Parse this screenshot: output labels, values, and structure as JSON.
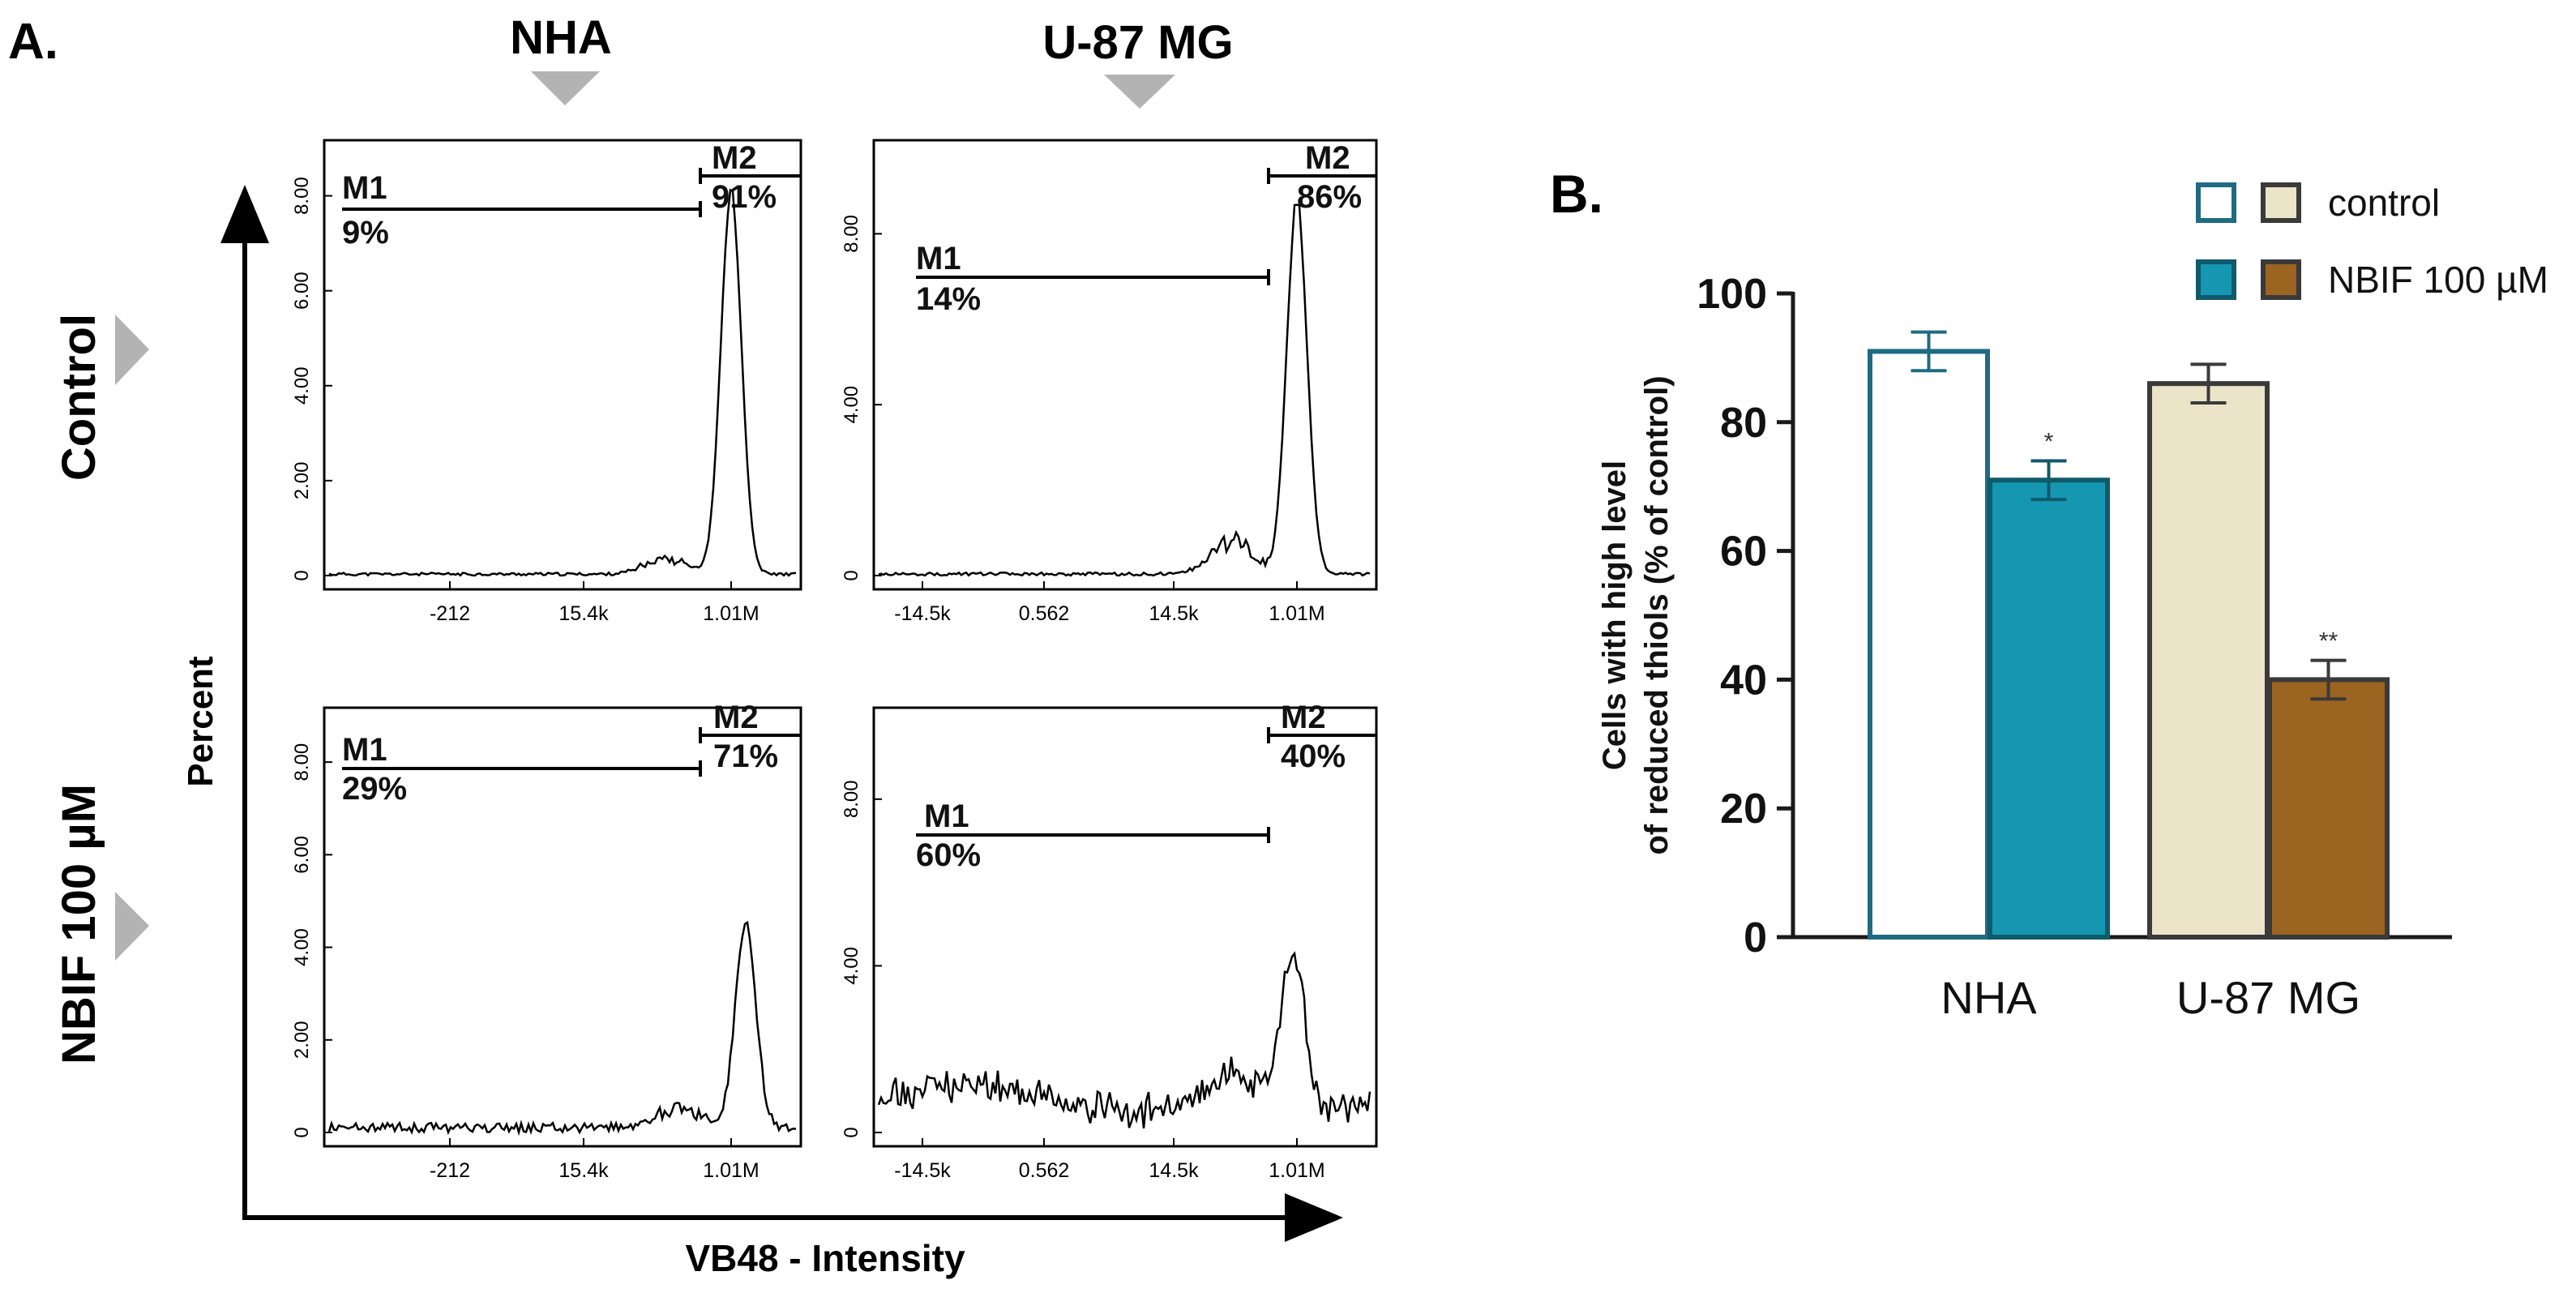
{
  "panel_a": {
    "label": "A.",
    "col_labels": [
      "NHA",
      "U-87 MG"
    ],
    "row_labels": [
      "Control",
      "NBIF 100 µM"
    ],
    "y_axis_label": "Percent",
    "x_axis_label": "VB48 - Intensity"
  },
  "panel_b": {
    "label": "B."
  },
  "chart_data": [
    {
      "type": "line",
      "title": "NHA - Control",
      "ytick_labels": [
        "0",
        "2.00",
        "4.00",
        "6.00",
        "8.00"
      ],
      "yticks": [
        0,
        2,
        4,
        6,
        8
      ],
      "ylim": [
        0,
        9.0
      ],
      "xtick_labels": [
        "-212",
        "15.4k",
        "1.01M"
      ],
      "gates": [
        {
          "name": "M1",
          "percent": "9%"
        },
        {
          "name": "M2",
          "percent": "91%"
        }
      ],
      "profile": {
        "noise": 0.1,
        "hump": 0.35,
        "peak_height": 8.0,
        "spike": 0.3
      }
    },
    {
      "type": "line",
      "title": "U-87 MG - Control",
      "ytick_labels": [
        "0",
        "4.00",
        "8.00"
      ],
      "yticks": [
        0,
        4,
        8
      ],
      "ylim": [
        0,
        10.0
      ],
      "xtick_labels": [
        "-14.5k",
        "0.562",
        "14.5k",
        "1.01M"
      ],
      "gates": [
        {
          "name": "M1",
          "percent": "14%"
        },
        {
          "name": "M2",
          "percent": "86%"
        }
      ],
      "profile": {
        "noise": 0.12,
        "hump": 0.8,
        "peak_height": 8.6,
        "spike": 0.3
      }
    },
    {
      "type": "line",
      "title": "NHA - NBIF 100 µM",
      "ytick_labels": [
        "0",
        "2.00",
        "4.00",
        "6.00",
        "8.00"
      ],
      "yticks": [
        0,
        2,
        4,
        6,
        8
      ],
      "ylim": [
        0,
        9.0
      ],
      "xtick_labels": [
        "-212",
        "15.4k",
        "1.01M"
      ],
      "gates": [
        {
          "name": "M1",
          "percent": "29%"
        },
        {
          "name": "M2",
          "percent": "71%"
        }
      ],
      "profile": {
        "noise": 0.35,
        "hump": 0.5,
        "peak_height": 4.4,
        "spike": 0.7
      }
    },
    {
      "type": "line",
      "title": "U-87 MG - NBIF 100 µM",
      "ytick_labels": [
        "0",
        "4.00",
        "8.00"
      ],
      "yticks": [
        0,
        4,
        8
      ],
      "ylim": [
        0,
        10.0
      ],
      "xtick_labels": [
        "-14.5k",
        "0.562",
        "14.5k",
        "1.01M"
      ],
      "gates": [
        {
          "name": "M1",
          "percent": "60%"
        },
        {
          "name": "M2",
          "percent": "40%"
        }
      ],
      "profile": {
        "noise": 0.9,
        "hump": 0.6,
        "peak_height": 3.7,
        "spike": 0.2
      }
    },
    {
      "type": "bar",
      "title": "",
      "categories": [
        "NHA",
        "U-87 MG"
      ],
      "ylabel_lines": [
        "Cells with high level",
        "of reduced thiols (% of control)"
      ],
      "ylim": [
        0,
        100
      ],
      "yticks": [
        0,
        20,
        40,
        60,
        80,
        100
      ],
      "legend": [
        {
          "label": "control",
          "swatches": [
            "nha_ctrl",
            "u87_ctrl"
          ]
        },
        {
          "label": "NBIF 100 µM",
          "swatches": [
            "nha_nbif",
            "u87_nbif"
          ]
        }
      ],
      "series": [
        {
          "name": "NHA control",
          "key": "nha_ctrl",
          "category": "NHA",
          "value": 91,
          "error": 3,
          "sig": "",
          "fill": "#ffffff",
          "stroke": "#1f6b82"
        },
        {
          "name": "NHA NBIF 100 µM",
          "key": "nha_nbif",
          "category": "NHA",
          "value": 71,
          "error": 3,
          "sig": "*",
          "fill": "#1597b2",
          "stroke": "#0f5a6b"
        },
        {
          "name": "U-87 MG control",
          "key": "u87_ctrl",
          "category": "U-87 MG",
          "value": 86,
          "error": 3,
          "sig": "",
          "fill": "#ebe4c8",
          "stroke": "#3a3a3a"
        },
        {
          "name": "U-87 MG NBIF 100 µM",
          "key": "u87_nbif",
          "category": "U-87 MG",
          "value": 40,
          "error": 3,
          "sig": "**",
          "fill": "#9b6420",
          "stroke": "#3a3a3a"
        }
      ]
    }
  ]
}
